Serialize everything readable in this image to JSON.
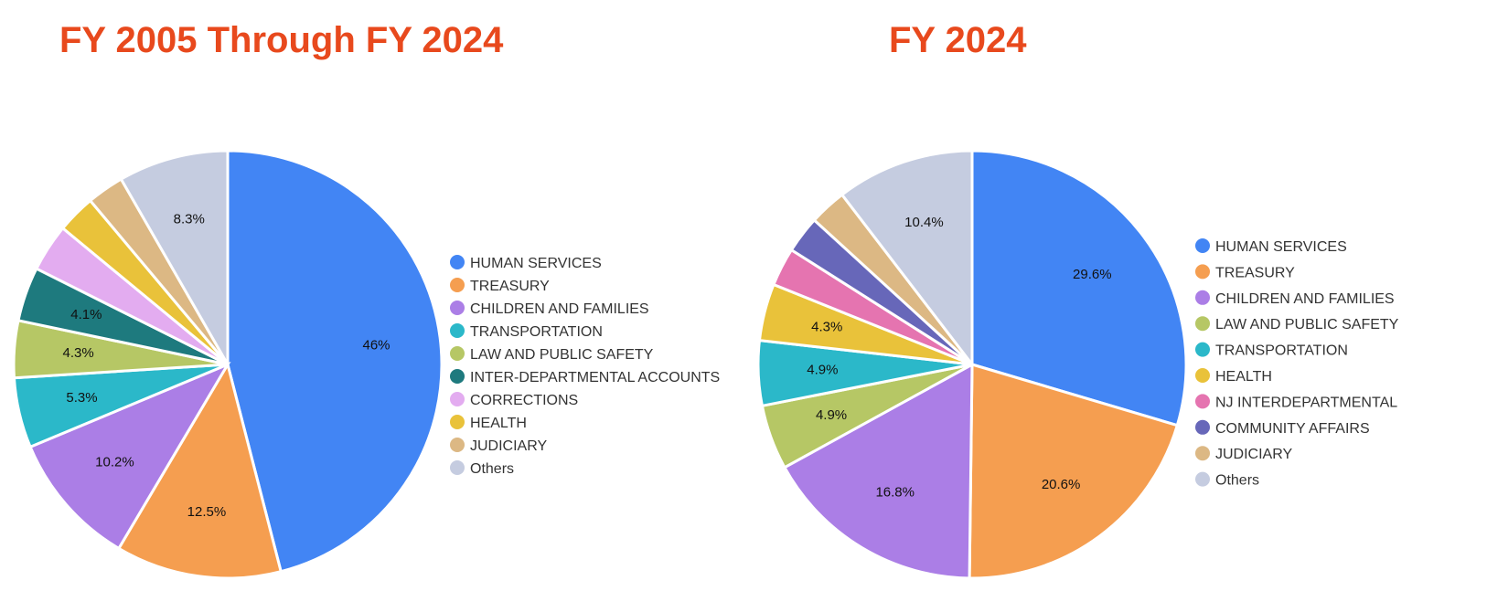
{
  "chart_data": [
    {
      "type": "pie",
      "title": "FY 2005 Through FY 2024",
      "legend": "right",
      "slices": [
        {
          "label": "HUMAN SERVICES",
          "value": 46,
          "display": "46%",
          "color": "#4285f4"
        },
        {
          "label": "TREASURY",
          "value": 12.5,
          "display": "12.5%",
          "color": "#f59e50"
        },
        {
          "label": "CHILDREN AND FAMILIES",
          "value": 10.2,
          "display": "10.2%",
          "color": "#ab7ee6"
        },
        {
          "label": "TRANSPORTATION",
          "value": 5.3,
          "display": "5.3%",
          "color": "#2bb8c9"
        },
        {
          "label": "LAW AND PUBLIC SAFETY",
          "value": 4.3,
          "display": "4.3%",
          "color": "#b6c765"
        },
        {
          "label": "INTER-DEPARTMENTAL ACCOUNTS",
          "value": 4.1,
          "display": "4.1%",
          "color": "#1e7a7e"
        },
        {
          "label": "CORRECTIONS",
          "value": 3.6,
          "display": "",
          "color": "#e3acf0"
        },
        {
          "label": "HEALTH",
          "value": 2.9,
          "display": "",
          "color": "#e9c23a"
        },
        {
          "label": "JUDICIARY",
          "value": 2.8,
          "display": "",
          "color": "#dcb884"
        },
        {
          "label": "Others",
          "value": 8.3,
          "display": "8.3%",
          "color": "#c5cce0"
        }
      ]
    },
    {
      "type": "pie",
      "title": "FY 2024",
      "legend": "right",
      "slices": [
        {
          "label": "HUMAN SERVICES",
          "value": 29.6,
          "display": "29.6%",
          "color": "#4285f4"
        },
        {
          "label": "TREASURY",
          "value": 20.6,
          "display": "20.6%",
          "color": "#f59e50"
        },
        {
          "label": "CHILDREN AND FAMILIES",
          "value": 16.8,
          "display": "16.8%",
          "color": "#ab7ee6"
        },
        {
          "label": "LAW AND PUBLIC SAFETY",
          "value": 4.9,
          "display": "4.9%",
          "color": "#b6c765"
        },
        {
          "label": "TRANSPORTATION",
          "value": 4.9,
          "display": "4.9%",
          "color": "#2bb8c9"
        },
        {
          "label": "HEALTH",
          "value": 4.3,
          "display": "4.3%",
          "color": "#e9c23a"
        },
        {
          "label": "NJ INTERDEPARTMENTAL",
          "value": 2.9,
          "display": "",
          "color": "#e574b0"
        },
        {
          "label": "COMMUNITY AFFAIRS",
          "value": 2.8,
          "display": "",
          "color": "#6767b9"
        },
        {
          "label": "JUDICIARY",
          "value": 2.8,
          "display": "",
          "color": "#dcb884"
        },
        {
          "label": "Others",
          "value": 10.4,
          "display": "10.4%",
          "color": "#c5cce0"
        }
      ]
    }
  ]
}
